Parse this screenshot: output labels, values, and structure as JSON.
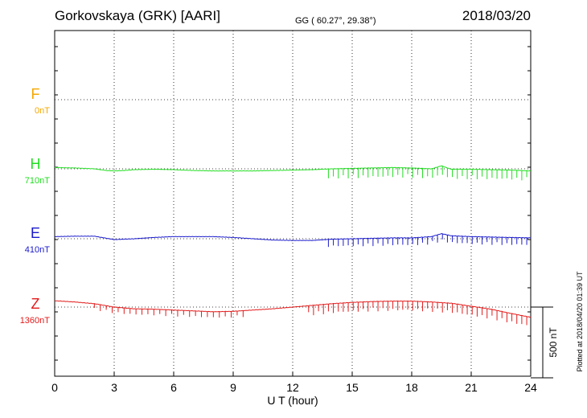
{
  "header": {
    "station": "Gorkovskaya (GRK)  [AARI]",
    "coords": "GG ( 60.27°,  29.38°)",
    "date": "2018/03/20"
  },
  "plotted_note": "Plotted at 2018/04/20 01:39 UT",
  "scale_label": "500 nT",
  "chart_data": {
    "type": "line",
    "xlabel": "U T (hour)",
    "xlim": [
      0,
      24
    ],
    "xticks": [
      "0",
      "3",
      "6",
      "9",
      "12",
      "15",
      "18",
      "21",
      "24"
    ],
    "scale_nT": 500,
    "series": [
      {
        "name": "F",
        "baseline": "0nT",
        "color": "#f5a800",
        "x": [],
        "y": []
      },
      {
        "name": "H",
        "baseline": "710nT",
        "color": "#22dd22",
        "x": [
          0,
          1,
          2,
          2.6,
          3,
          3.5,
          4,
          5,
          6,
          7,
          8,
          9,
          10,
          11,
          12,
          13,
          14,
          15,
          16,
          17,
          18,
          19,
          19.5,
          19.8,
          20,
          21,
          22,
          23,
          24
        ],
        "y": [
          9,
          6,
          0,
          -12,
          -15,
          -12,
          -6,
          -3,
          -6,
          -12,
          -15,
          -15,
          -15,
          -12,
          -9,
          -6,
          0,
          3,
          6,
          9,
          6,
          0,
          21,
          6,
          -3,
          -3,
          -6,
          -9,
          -15
        ],
        "spikes": [
          {
            "start": 13.8,
            "end": 24,
            "step": 0.25,
            "depth": 70
          }
        ]
      },
      {
        "name": "E",
        "baseline": "410nT",
        "color": "#1a1acc",
        "x": [
          0,
          1,
          2,
          2.5,
          3,
          3.5,
          4,
          5,
          5.5,
          6,
          7,
          8,
          9,
          10,
          11,
          12,
          13,
          14,
          15,
          16,
          17,
          18,
          19,
          19.5,
          20,
          21,
          22,
          23,
          24
        ],
        "y": [
          15,
          18,
          18,
          6,
          -6,
          -3,
          0,
          9,
          12,
          15,
          15,
          15,
          9,
          0,
          -9,
          -12,
          -12,
          -3,
          0,
          3,
          6,
          6,
          15,
          36,
          21,
          15,
          12,
          9,
          6
        ],
        "spikes": [
          {
            "start": 13.8,
            "end": 24,
            "step": 0.25,
            "depth": 55
          }
        ]
      },
      {
        "name": "Z",
        "baseline": "1360nT",
        "color": "#e31a1a",
        "x": [
          0,
          1,
          2,
          3,
          4,
          5,
          6,
          7,
          8,
          9,
          10,
          11,
          12,
          13,
          14,
          15,
          16,
          17,
          18,
          19,
          20,
          21,
          22,
          23,
          24
        ],
        "y": [
          45,
          36,
          24,
          0,
          -12,
          -15,
          -21,
          -27,
          -33,
          -30,
          -21,
          -12,
          0,
          12,
          24,
          33,
          39,
          42,
          42,
          36,
          27,
          6,
          -15,
          -45,
          -72
        ],
        "spikes": [
          {
            "start": 2.0,
            "end": 9.5,
            "step": 0.3,
            "depth": 45
          },
          {
            "start": 12.8,
            "end": 24,
            "step": 0.25,
            "depth": 70
          }
        ]
      }
    ]
  }
}
